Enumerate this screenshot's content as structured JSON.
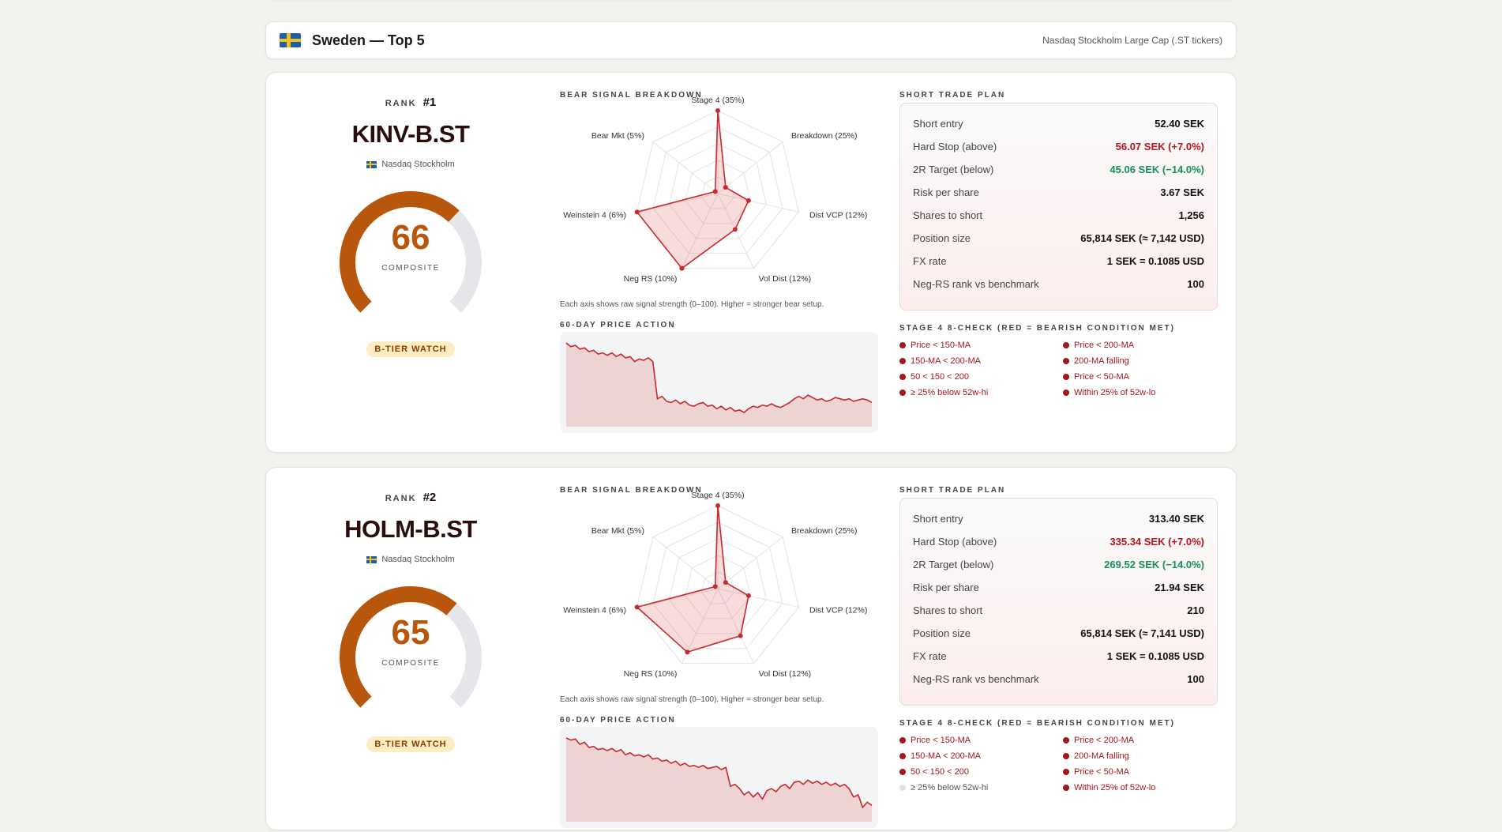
{
  "header": {
    "title": "Sweden — Top 5",
    "subtitle": "Nasdaq Stockholm Large Cap (.ST tickers)"
  },
  "labels": {
    "rank": "RANK",
    "composite": "COMPOSITE",
    "bear_signal": "BEAR SIGNAL BREAKDOWN",
    "price_action": "60-DAY PRICE ACTION",
    "trade_plan": "SHORT TRADE PLAN",
    "stage4_check": "STAGE 4 8-CHECK (RED = BEARISH CONDITION MET)",
    "radar_note": "Each axis shows raw signal strength (0–100). Higher = stronger bear setup."
  },
  "colors": {
    "accent": "#b8560c",
    "bear_red": "#c62a2f",
    "positive_green": "#14915a",
    "gauge_track": "#e5e6ea"
  },
  "radar_axes": [
    "Stage 4 (35%)",
    "Breakdown (25%)",
    "Dist VCP (12%)",
    "Vol Dist (12%)",
    "Neg RS (10%)",
    "Weinstein 4 (6%)",
    "Bear Mkt (5%)"
  ],
  "cards": [
    {
      "rank": "#1",
      "ticker": "KINV-B.ST",
      "exchange": "Nasdaq Stockholm",
      "score": "66",
      "score_value": 66,
      "tier": "B-TIER WATCH",
      "radar_values": [
        100,
        12,
        38,
        48,
        100,
        100,
        4
      ],
      "plan": [
        {
          "k": "Short entry",
          "v": "52.40 SEK",
          "tone": ""
        },
        {
          "k": "Hard Stop (above)",
          "v": "56.07 SEK (+7.0%)",
          "tone": "red"
        },
        {
          "k": "2R Target (below)",
          "v": "45.06 SEK (−14.0%)",
          "tone": "green"
        },
        {
          "k": "Risk per share",
          "v": "3.67 SEK",
          "tone": ""
        },
        {
          "k": "Shares to short",
          "v": "1,256",
          "tone": ""
        },
        {
          "k": "Position size",
          "v": "65,814 SEK (≈ 7,142 USD)",
          "tone": ""
        },
        {
          "k": "FX rate",
          "v": "1 SEK = 0.1085 USD",
          "tone": ""
        },
        {
          "k": "Neg-RS rank vs benchmark",
          "v": "100",
          "tone": ""
        }
      ],
      "checks": [
        {
          "label": "Price < 150-MA",
          "met": true
        },
        {
          "label": "Price < 200-MA",
          "met": true
        },
        {
          "label": "150-MA < 200-MA",
          "met": true
        },
        {
          "label": "200-MA falling",
          "met": true
        },
        {
          "label": "50 < 150 < 200",
          "met": true
        },
        {
          "label": "Price < 50-MA",
          "met": true
        },
        {
          "label": "≥ 25% below 52w-hi",
          "met": true
        },
        {
          "label": "Within 25% of 52w-lo",
          "met": true
        }
      ],
      "prices": [
        95,
        92,
        93,
        90,
        91,
        88,
        89,
        86,
        87,
        85,
        87,
        84,
        86,
        83,
        84,
        80,
        82,
        81,
        83,
        80,
        50,
        52,
        48,
        47,
        49,
        46,
        48,
        45,
        44,
        46,
        47,
        44,
        45,
        42,
        44,
        41,
        43,
        40,
        41,
        39,
        42,
        44,
        43,
        45,
        44,
        46,
        44,
        43,
        45,
        47,
        50,
        52,
        50,
        53,
        51,
        49,
        50,
        48,
        49,
        51,
        50,
        49,
        50,
        48,
        49,
        50,
        49,
        47
      ]
    },
    {
      "rank": "#2",
      "ticker": "HOLM-B.ST",
      "exchange": "Nasdaq Stockholm",
      "score": "65",
      "score_value": 65,
      "tier": "B-TIER WATCH",
      "radar_values": [
        100,
        12,
        38,
        63,
        85,
        100,
        4
      ],
      "plan": [
        {
          "k": "Short entry",
          "v": "313.40 SEK",
          "tone": ""
        },
        {
          "k": "Hard Stop (above)",
          "v": "335.34 SEK (+7.0%)",
          "tone": "red"
        },
        {
          "k": "2R Target (below)",
          "v": "269.52 SEK (−14.0%)",
          "tone": "green"
        },
        {
          "k": "Risk per share",
          "v": "21.94 SEK",
          "tone": ""
        },
        {
          "k": "Shares to short",
          "v": "210",
          "tone": ""
        },
        {
          "k": "Position size",
          "v": "65,814 SEK (≈ 7,141 USD)",
          "tone": ""
        },
        {
          "k": "FX rate",
          "v": "1 SEK = 0.1085 USD",
          "tone": ""
        },
        {
          "k": "Neg-RS rank vs benchmark",
          "v": "100",
          "tone": ""
        }
      ],
      "checks": [
        {
          "label": "Price < 150-MA",
          "met": true
        },
        {
          "label": "Price < 200-MA",
          "met": true
        },
        {
          "label": "150-MA < 200-MA",
          "met": true
        },
        {
          "label": "200-MA falling",
          "met": true
        },
        {
          "label": "50 < 150 < 200",
          "met": true
        },
        {
          "label": "Price < 50-MA",
          "met": true
        },
        {
          "label": "≥ 25% below 52w-hi",
          "met": false
        },
        {
          "label": "Within 25% of 52w-lo",
          "met": true
        }
      ],
      "prices": [
        96,
        94,
        95,
        90,
        92,
        87,
        88,
        85,
        86,
        84,
        86,
        83,
        85,
        80,
        82,
        79,
        80,
        78,
        80,
        76,
        77,
        74,
        75,
        72,
        74,
        70,
        72,
        69,
        70,
        68,
        70,
        67,
        68,
        69,
        66,
        68,
        50,
        52,
        48,
        42,
        45,
        40,
        44,
        38,
        46,
        48,
        45,
        50,
        52,
        48,
        54,
        55,
        52,
        56,
        53,
        55,
        52,
        54,
        51,
        53,
        50,
        52,
        48,
        40,
        42,
        30,
        35,
        32
      ]
    }
  ]
}
